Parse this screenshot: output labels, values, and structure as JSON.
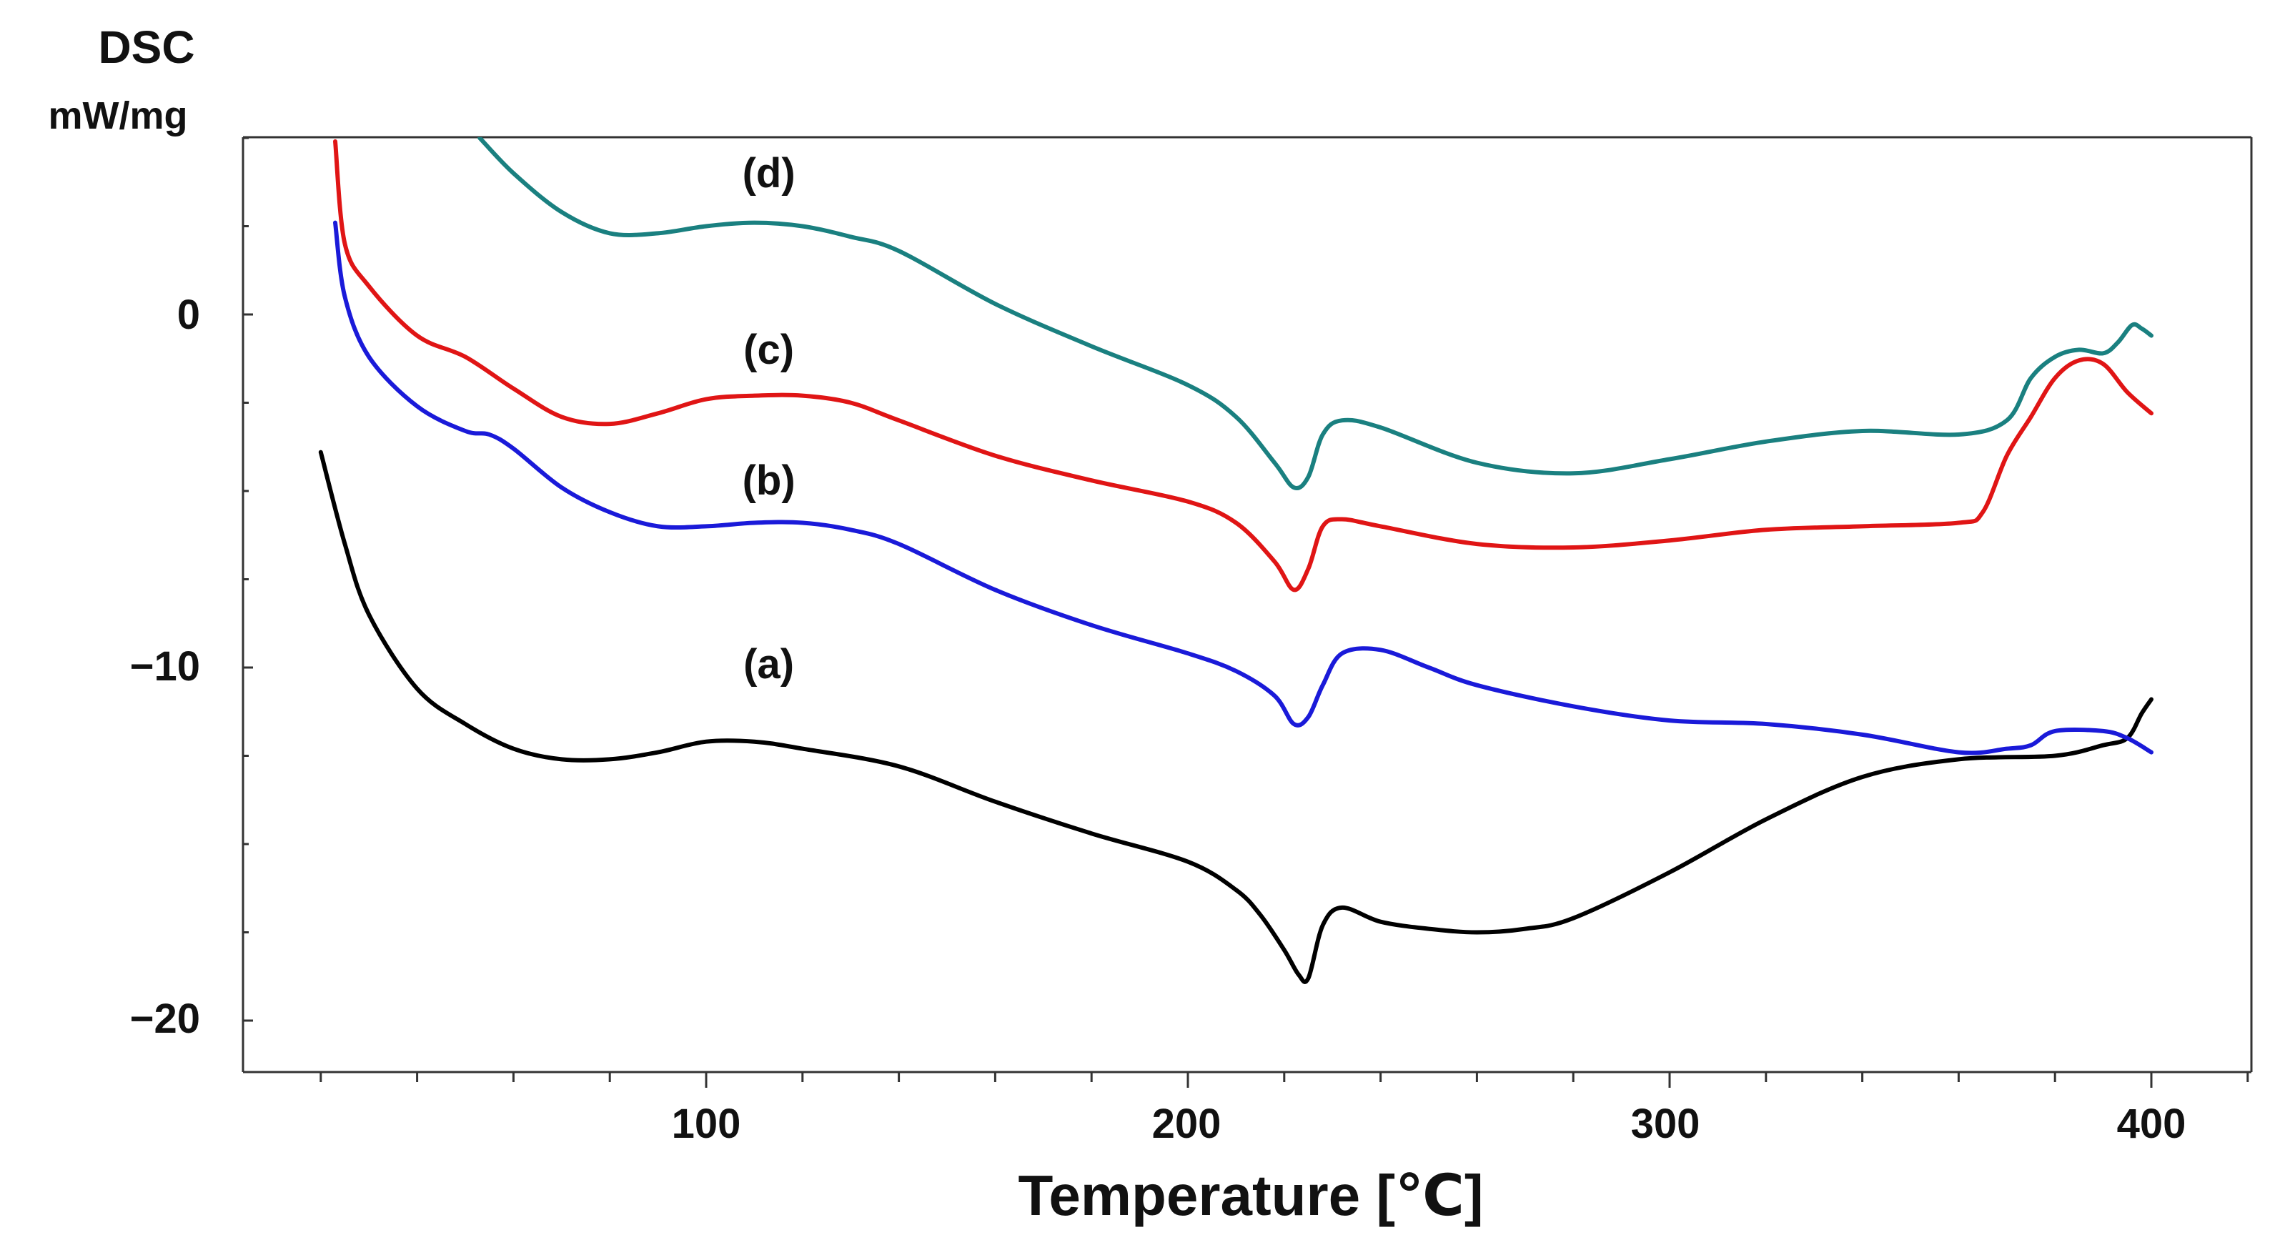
{
  "chart_data": {
    "type": "line",
    "ylabel": "DSC",
    "yunit": "mW/mg",
    "xlabel": "Temperature [℃]",
    "xlim": [
      0,
      420
    ],
    "ylim": [
      -21.5,
      5
    ],
    "x_ticks": [
      100,
      200,
      300,
      400
    ],
    "x_tick_labels": [
      "100",
      "200",
      "300",
      "400"
    ],
    "y_ticks": [
      0,
      -10,
      -20
    ],
    "y_tick_labels": [
      "0",
      "−10",
      "−20"
    ],
    "series": [
      {
        "name": "(a)",
        "color": "#000000",
        "label_pos": [
          113,
          -10.3
        ],
        "x": [
          20,
          25,
          30,
          40,
          50,
          60,
          70,
          80,
          90,
          100,
          110,
          120,
          140,
          160,
          180,
          200,
          210,
          215,
          220,
          223,
          225,
          228,
          232,
          240,
          250,
          260,
          270,
          280,
          300,
          320,
          340,
          360,
          380,
          390,
          395,
          398,
          400
        ],
        "y": [
          -3.9,
          -6.5,
          -8.5,
          -10.6,
          -11.6,
          -12.3,
          -12.6,
          -12.6,
          -12.4,
          -12.1,
          -12.1,
          -12.3,
          -12.8,
          -13.8,
          -14.7,
          -15.5,
          -16.3,
          -17.0,
          -18.0,
          -18.7,
          -18.8,
          -17.3,
          -16.8,
          -17.2,
          -17.4,
          -17.5,
          -17.4,
          -17.1,
          -15.8,
          -14.3,
          -13.1,
          -12.6,
          -12.5,
          -12.2,
          -12.0,
          -11.3,
          -10.9
        ]
      },
      {
        "name": "(b)",
        "color": "#1a1ad9",
        "label_pos": [
          113,
          -5.1
        ],
        "x": [
          23,
          25,
          30,
          40,
          50,
          55,
          60,
          70,
          80,
          90,
          100,
          110,
          120,
          130,
          140,
          160,
          180,
          200,
          210,
          218,
          222,
          225,
          228,
          232,
          240,
          250,
          260,
          280,
          300,
          320,
          340,
          360,
          370,
          375,
          380,
          390,
          395,
          400
        ],
        "y": [
          2.6,
          0.5,
          -1.2,
          -2.6,
          -3.3,
          -3.4,
          -3.8,
          -4.9,
          -5.6,
          -6.0,
          -6.0,
          -5.9,
          -5.9,
          -6.1,
          -6.5,
          -7.8,
          -8.8,
          -9.6,
          -10.1,
          -10.8,
          -11.6,
          -11.4,
          -10.5,
          -9.6,
          -9.5,
          -10.0,
          -10.5,
          -11.1,
          -11.5,
          -11.6,
          -11.9,
          -12.4,
          -12.3,
          -12.2,
          -11.8,
          -11.8,
          -12.0,
          -12.4
        ]
      },
      {
        "name": "(c)",
        "color": "#e01515",
        "label_pos": [
          113,
          -1.4
        ],
        "x": [
          23,
          25,
          30,
          40,
          50,
          60,
          70,
          80,
          90,
          100,
          110,
          120,
          130,
          140,
          160,
          180,
          200,
          210,
          218,
          222,
          225,
          228,
          232,
          240,
          260,
          280,
          300,
          320,
          340,
          360,
          365,
          370,
          375,
          380,
          385,
          390,
          395,
          400
        ],
        "y": [
          4.9,
          2.0,
          0.8,
          -0.6,
          -1.2,
          -2.1,
          -2.9,
          -3.1,
          -2.8,
          -2.4,
          -2.3,
          -2.3,
          -2.5,
          -3.0,
          -4.0,
          -4.7,
          -5.3,
          -5.9,
          -7.0,
          -7.8,
          -7.2,
          -6.0,
          -5.8,
          -6.0,
          -6.5,
          -6.6,
          -6.4,
          -6.1,
          -6.0,
          -5.9,
          -5.6,
          -4.0,
          -2.9,
          -1.8,
          -1.3,
          -1.4,
          -2.2,
          -2.8
        ]
      },
      {
        "name": "(d)",
        "color": "#1a8080",
        "label_pos": [
          113,
          3.6
        ],
        "x": [
          53,
          60,
          70,
          80,
          90,
          100,
          110,
          120,
          130,
          140,
          160,
          180,
          200,
          210,
          218,
          222,
          225,
          228,
          232,
          240,
          260,
          280,
          300,
          320,
          340,
          360,
          370,
          375,
          380,
          385,
          390,
          393,
          396,
          398,
          400
        ],
        "y": [
          5.0,
          4.0,
          2.9,
          2.3,
          2.3,
          2.5,
          2.6,
          2.5,
          2.2,
          1.8,
          0.3,
          -0.9,
          -2.0,
          -2.9,
          -4.2,
          -4.9,
          -4.6,
          -3.4,
          -3.0,
          -3.2,
          -4.2,
          -4.5,
          -4.1,
          -3.6,
          -3.3,
          -3.4,
          -3.0,
          -1.8,
          -1.2,
          -1.0,
          -1.1,
          -0.8,
          -0.3,
          -0.4,
          -0.6
        ]
      }
    ]
  }
}
